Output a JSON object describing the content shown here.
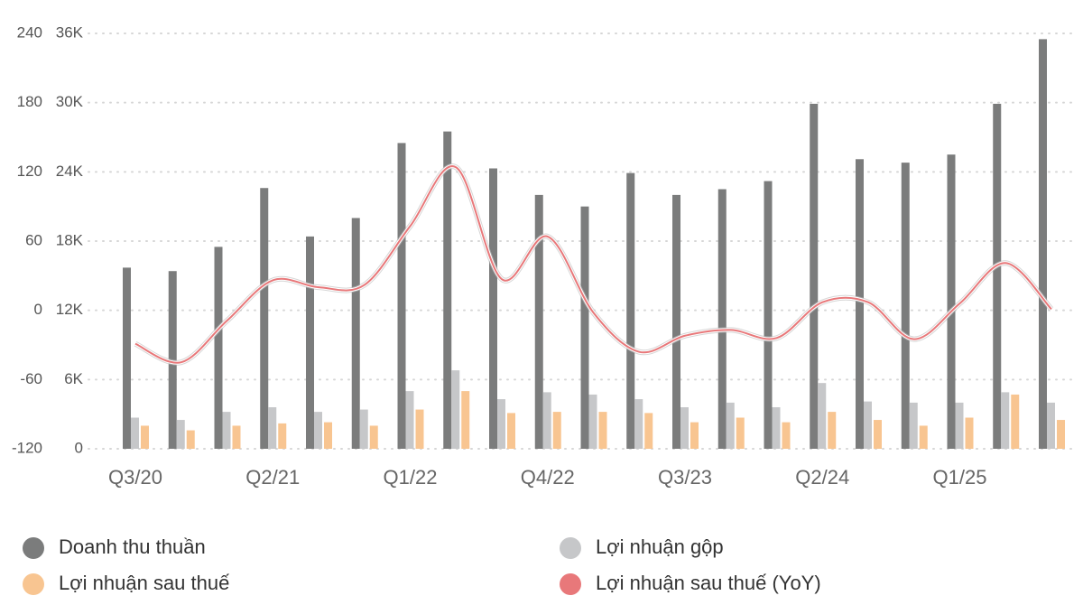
{
  "chart_data": {
    "type": "bar-line",
    "categories": [
      "Q3/20",
      null,
      null,
      "Q2/21",
      null,
      null,
      "Q1/22",
      null,
      null,
      "Q4/22",
      null,
      null,
      "Q3/23",
      null,
      null,
      "Q2/24",
      null,
      null,
      "Q1/25",
      null,
      null
    ],
    "series": [
      {
        "name": "Doanh thu thuần",
        "color": "#7b7c7c",
        "type": "bar",
        "values": [
          15700,
          15400,
          17500,
          22600,
          18400,
          20000,
          26500,
          27500,
          24300,
          22000,
          21000,
          23900,
          22000,
          22500,
          23200,
          29900,
          25100,
          24800,
          25500,
          29900,
          35500
        ]
      },
      {
        "name": "Lợi nhuận gộp",
        "color": "#c6c7c9",
        "type": "bar",
        "values": [
          2700,
          2500,
          3200,
          3600,
          3200,
          3400,
          5000,
          6800,
          4300,
          4900,
          4700,
          4300,
          3600,
          4000,
          3600,
          5700,
          4100,
          4000,
          4000,
          4900,
          4000
        ]
      },
      {
        "name": "Lợi nhuận sau thuế",
        "color": "#f8c591",
        "type": "bar",
        "values": [
          2000,
          1600,
          2000,
          2200,
          2300,
          2000,
          3400,
          5000,
          3100,
          3200,
          3200,
          3100,
          2300,
          2700,
          2300,
          3200,
          2500,
          2000,
          2700,
          4700,
          2500
        ]
      },
      {
        "name": "Lợi nhuận sau thuế (YoY)",
        "color": "#e8787a",
        "type": "line",
        "axis": "y2",
        "values": [
          -29,
          -45,
          -9,
          26,
          20,
          22,
          73,
          124,
          27,
          64,
          -2,
          -36,
          -22,
          -17,
          -24,
          7,
          7,
          -25,
          6,
          41,
          1
        ]
      }
    ],
    "ylim": [
      0,
      36000
    ],
    "yticks": [
      {
        "value": 0,
        "label": "0"
      },
      {
        "value": 6000,
        "label": "6K"
      },
      {
        "value": 12000,
        "label": "12K"
      },
      {
        "value": 18000,
        "label": "18K"
      },
      {
        "value": 24000,
        "label": "24K"
      },
      {
        "value": 30000,
        "label": "30K"
      },
      {
        "value": 36000,
        "label": "36K"
      }
    ],
    "y2lim": [
      -120,
      240
    ],
    "y2ticks": [
      -120,
      -60,
      0,
      60,
      120,
      180,
      240
    ],
    "grid": true
  }
}
